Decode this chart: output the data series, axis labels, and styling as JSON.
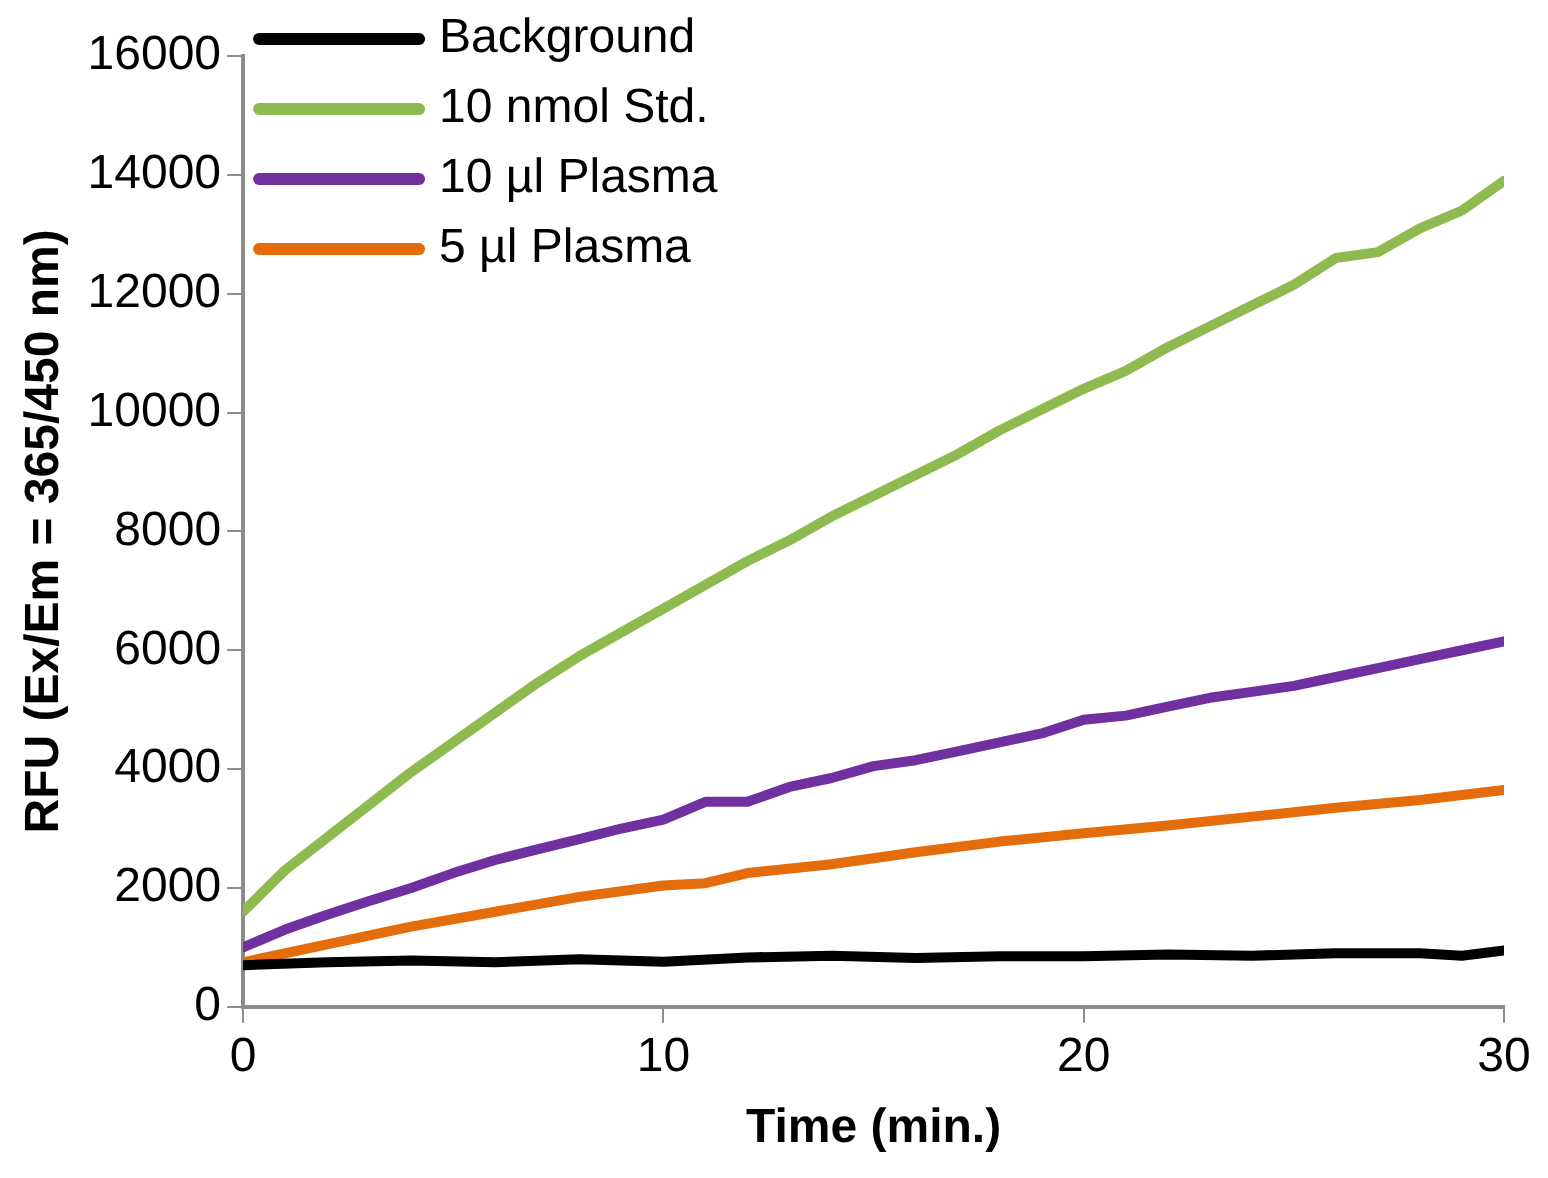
{
  "chart_data": {
    "type": "line",
    "xlabel": "Time (min.)",
    "ylabel": "RFU (Ex/Em = 365/450 nm)",
    "xlim": [
      0,
      30
    ],
    "xticks": [
      0,
      10,
      20,
      30
    ],
    "ylim": [
      0,
      16000
    ],
    "yticks": [
      0,
      2000,
      4000,
      6000,
      8000,
      10000,
      12000,
      14000,
      16000
    ],
    "grid": false,
    "legend": "top left",
    "marker": "none",
    "line_style": "solid",
    "series": [
      {
        "name": "Background",
        "color": "#000000",
        "x": [
          0,
          2,
          4,
          6,
          8,
          10,
          12,
          14,
          16,
          18,
          20,
          22,
          24,
          26,
          28,
          29,
          30
        ],
        "values": [
          700,
          750,
          780,
          750,
          800,
          760,
          830,
          860,
          820,
          850,
          850,
          880,
          860,
          900,
          900,
          860,
          950
        ]
      },
      {
        "name": "10 nmol Std.",
        "color": "#8fba4f",
        "x": [
          0,
          1,
          2,
          3,
          4,
          5,
          6,
          7,
          8,
          9,
          10,
          11,
          12,
          13,
          14,
          15,
          16,
          17,
          18,
          19,
          20,
          21,
          22,
          23,
          24,
          25,
          26,
          27,
          28,
          29,
          30
        ],
        "values": [
          1600,
          2300,
          2850,
          3400,
          3950,
          4450,
          4950,
          5450,
          5900,
          6300,
          6700,
          7100,
          7500,
          7850,
          8250,
          8600,
          8950,
          9300,
          9700,
          10050,
          10400,
          10700,
          11100,
          11450,
          11800,
          12150,
          12600,
          12700,
          13100,
          13400,
          13900
        ]
      },
      {
        "name": "10 µl Plasma",
        "color": "#7030a0",
        "x": [
          0,
          1,
          2,
          3,
          4,
          5,
          6,
          7,
          8,
          9,
          10,
          11,
          12,
          13,
          14,
          15,
          16,
          17,
          18,
          19,
          20,
          21,
          22,
          23,
          24,
          25,
          26,
          27,
          28,
          29,
          30
        ],
        "values": [
          1000,
          1300,
          1550,
          1780,
          2000,
          2250,
          2470,
          2650,
          2820,
          3000,
          3150,
          3450,
          3450,
          3700,
          3850,
          4050,
          4150,
          4300,
          4450,
          4600,
          4830,
          4900,
          5050,
          5200,
          5300,
          5400,
          5550,
          5700,
          5850,
          6000,
          6150
        ]
      },
      {
        "name": "5 µl Plasma",
        "color": "#e46c0a",
        "x": [
          0,
          2,
          4,
          6,
          8,
          10,
          11,
          12,
          14,
          16,
          18,
          20,
          22,
          24,
          26,
          28,
          30
        ],
        "values": [
          750,
          1050,
          1350,
          1600,
          1850,
          2040,
          2080,
          2250,
          2400,
          2600,
          2780,
          2920,
          3050,
          3200,
          3350,
          3480,
          3650
        ]
      }
    ]
  }
}
